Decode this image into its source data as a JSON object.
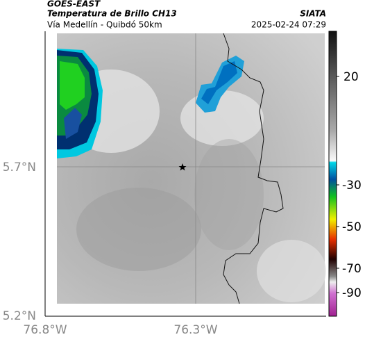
{
  "header": {
    "source": "GOES-EAST",
    "title": "Temperatura de Brillo CH13",
    "subtitle": "Vía Medellín - Quibdó 50km",
    "brand": "SIATA",
    "datetime": "2025-02-24 07:29"
  },
  "axes": {
    "yticks": [
      "5.7°N",
      "5.2°N"
    ],
    "xticks": [
      "76.8°W",
      "76.3°W"
    ]
  },
  "colorbar": {
    "ticks": [
      "20",
      "-30",
      "-50",
      "-70",
      "-90"
    ]
  }
}
